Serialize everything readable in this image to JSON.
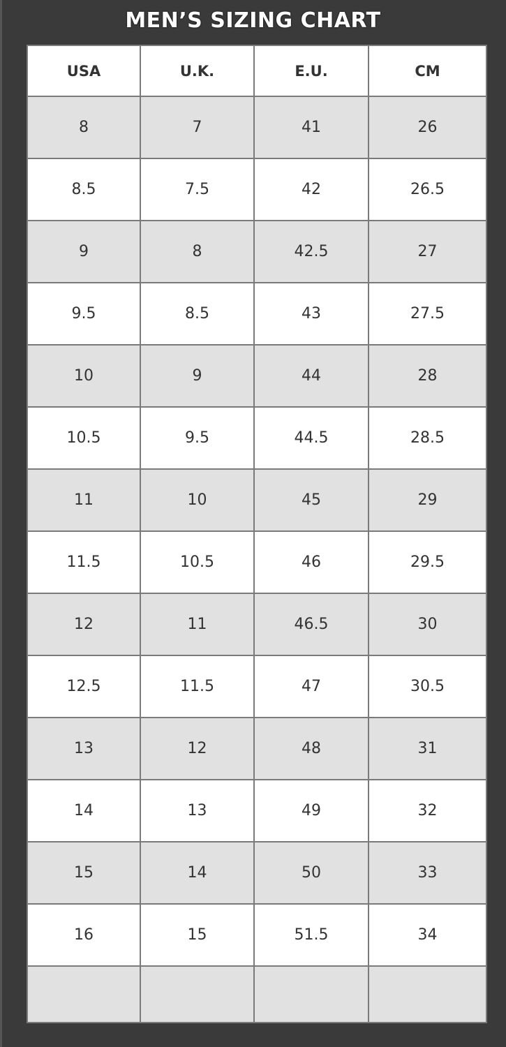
{
  "title": "MEN’S SIZING CHART",
  "colors": {
    "background": "#3a3a3a",
    "shaded_row": "#e1e1e1",
    "plain_row": "#ffffff",
    "grid": "#7a7a7a",
    "text": "#333333"
  },
  "chart_data": {
    "type": "table",
    "title": "MEN’S SIZING CHART",
    "columns": [
      "USA",
      "U.K.",
      "E.U.",
      "CM"
    ],
    "rows": [
      [
        "8",
        "7",
        "41",
        "26"
      ],
      [
        "8.5",
        "7.5",
        "42",
        "26.5"
      ],
      [
        "9",
        "8",
        "42.5",
        "27"
      ],
      [
        "9.5",
        "8.5",
        "43",
        "27.5"
      ],
      [
        "10",
        "9",
        "44",
        "28"
      ],
      [
        "10.5",
        "9.5",
        "44.5",
        "28.5"
      ],
      [
        "11",
        "10",
        "45",
        "29"
      ],
      [
        "11.5",
        "10.5",
        "46",
        "29.5"
      ],
      [
        "12",
        "11",
        "46.5",
        "30"
      ],
      [
        "12.5",
        "11.5",
        "47",
        "30.5"
      ],
      [
        "13",
        "12",
        "48",
        "31"
      ],
      [
        "14",
        "13",
        "49",
        "32"
      ],
      [
        "15",
        "14",
        "50",
        "33"
      ],
      [
        "16",
        "15",
        "51.5",
        "34"
      ],
      [
        "",
        "",
        "",
        ""
      ]
    ]
  }
}
